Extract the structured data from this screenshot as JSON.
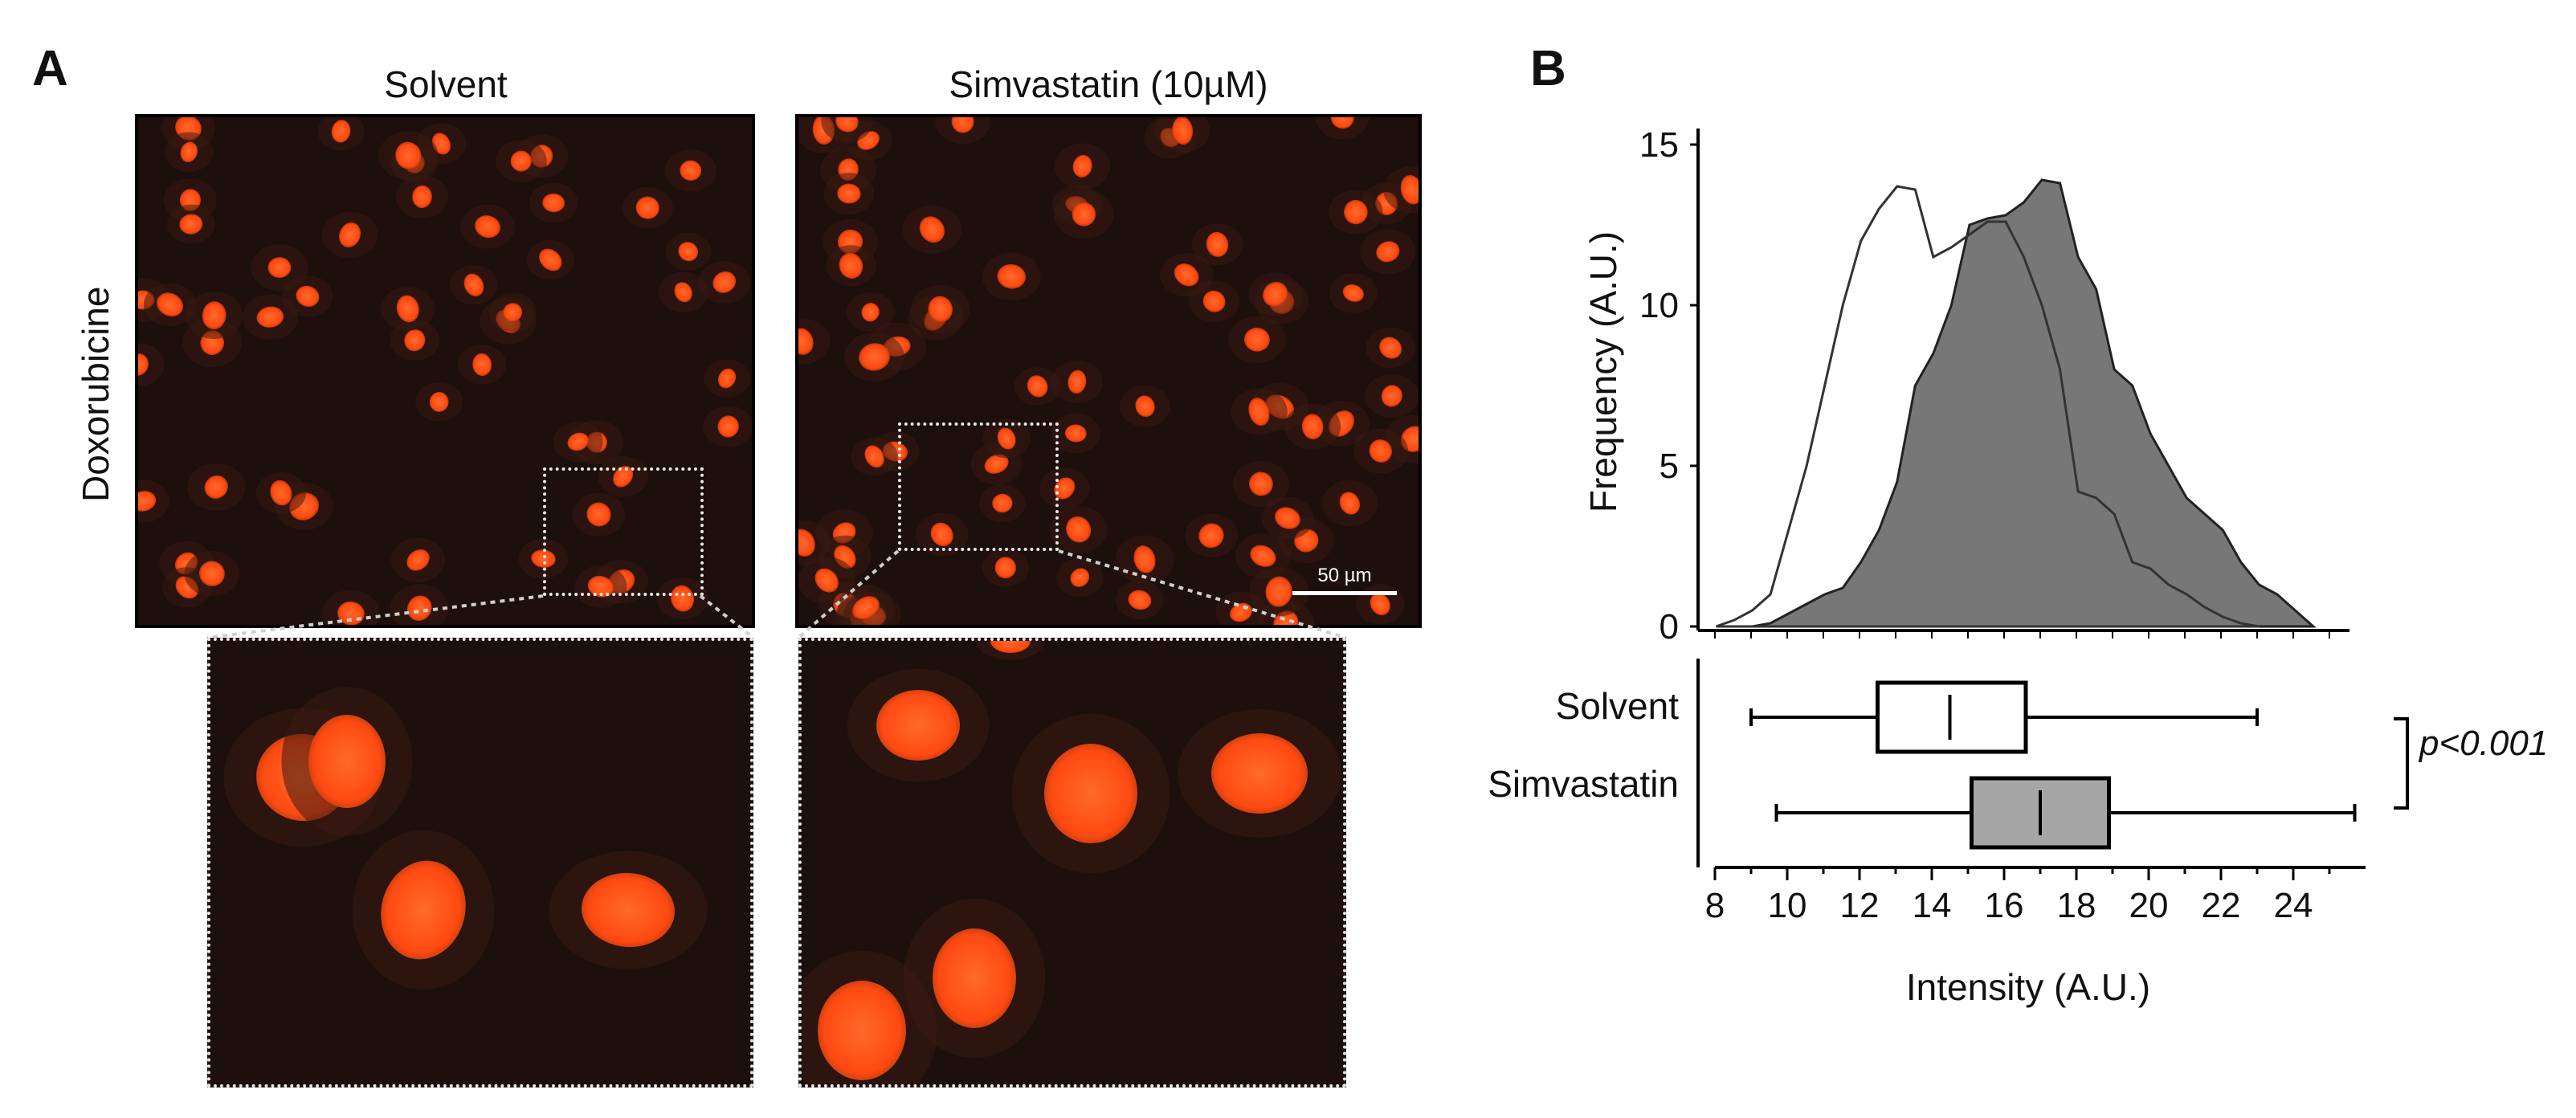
{
  "panel_a": {
    "letter": "A",
    "col_titles": [
      "Solvent",
      "Simvastatin (10µM)"
    ],
    "row_label": "Doxorubicine",
    "scale_bar": "50 µm",
    "nucleus_color": "#ff4a12",
    "background_color": "#1c0f0c"
  },
  "panel_b": {
    "letter": "B",
    "p_value": "p<0.001"
  },
  "chart_data": [
    {
      "type": "area",
      "ylabel": "Frequency (A.U.)",
      "xlim": [
        8,
        26
      ],
      "ylim": [
        0,
        15
      ],
      "y_ticks": [
        "0",
        "5",
        "10",
        "15"
      ],
      "series": [
        {
          "name": "Solvent",
          "fill": "#ffffff",
          "stroke": "#333333",
          "x": [
            8.5,
            9,
            9.5,
            10,
            10.5,
            11,
            11.5,
            12,
            12.5,
            13,
            13.5,
            14,
            14.5,
            15,
            15.5,
            16,
            16.5,
            17,
            17.5,
            18,
            18.5,
            19,
            19.5,
            20,
            20.5,
            21,
            21.5,
            22,
            22.5,
            23,
            23.5
          ],
          "values": [
            0,
            0.2,
            0.5,
            1,
            3,
            5,
            7.5,
            10,
            12,
            13,
            13.7,
            13.6,
            11.5,
            11.8,
            12.2,
            12.6,
            12.6,
            11.5,
            10,
            8,
            4.2,
            4,
            3.5,
            2,
            1.8,
            1.3,
            1,
            0.6,
            0.3,
            0.1,
            0
          ]
        },
        {
          "name": "Simvastatin",
          "fill": "#777777",
          "stroke": "#222222",
          "x": [
            9.5,
            10,
            10.5,
            11,
            11.5,
            12,
            12.5,
            13,
            13.5,
            14,
            14.5,
            15,
            15.5,
            16,
            16.5,
            17,
            17.5,
            18,
            18.5,
            19,
            19.5,
            20,
            20.5,
            21,
            21.5,
            22,
            22.5,
            23,
            23.5,
            24,
            24.5,
            25
          ],
          "values": [
            0,
            0.1,
            0.4,
            0.7,
            1,
            1.2,
            2,
            3,
            4.5,
            7.5,
            8.5,
            10,
            12.5,
            12.7,
            12.8,
            13.2,
            13.9,
            13.8,
            11.5,
            10.5,
            8,
            7.5,
            6,
            5,
            4,
            3.5,
            3,
            2,
            1.3,
            1,
            0.5,
            0
          ]
        }
      ]
    },
    {
      "type": "boxplot",
      "xlabel": "Intensity (A.U.)",
      "xlim": [
        8,
        26
      ],
      "x_ticks": [
        "8",
        "10",
        "12",
        "14",
        "16",
        "18",
        "20",
        "22",
        "24"
      ],
      "series": [
        {
          "name": "Solvent",
          "fill": "#ffffff",
          "min": 9,
          "q1": 12.5,
          "median": 14.5,
          "q3": 16.6,
          "max": 23
        },
        {
          "name": "Simvastatin",
          "fill": "#a6a6a6",
          "min": 9.7,
          "q1": 15.1,
          "median": 17,
          "q3": 18.9,
          "max": 25.7
        }
      ]
    }
  ]
}
